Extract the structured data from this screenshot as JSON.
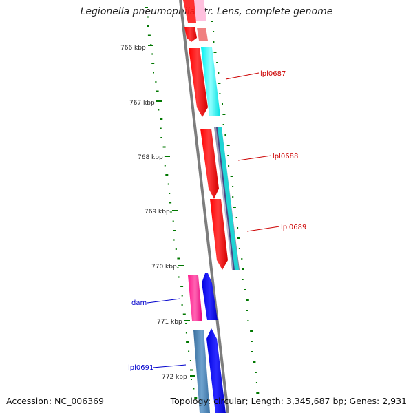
{
  "title": "Legionella pneumophila str. Lens, complete genome",
  "footer": {
    "accession": "Accession: NC_006369",
    "summary": "Topology: circular; Length: 3,345,687 bp; Genes: 2,931"
  },
  "ruler": {
    "labels": [
      "766 kbp",
      "767 kbp",
      "768 kbp",
      "769 kbp",
      "770 kbp",
      "771 kbp",
      "772 kbp"
    ]
  },
  "genes": [
    {
      "label": "lpl0687",
      "color": "#cc0000"
    },
    {
      "label": "lpl0688",
      "color": "#cc0000"
    },
    {
      "label": "lpl0689",
      "color": "#cc0000"
    },
    {
      "label": "dam",
      "color": "#0000cc"
    },
    {
      "label": "lpl0691",
      "color": "#0000cc"
    }
  ],
  "colors": {
    "backbone": "#808080",
    "forward_strand": "#ff0000",
    "reverse_strand": "#0000ff",
    "cog_cyan": "#00ffff",
    "cog_pink": "#ff3399",
    "cog_steel": "#4682b4",
    "cog_slate": "#6a6a9a",
    "gc_skew": "#007700"
  }
}
